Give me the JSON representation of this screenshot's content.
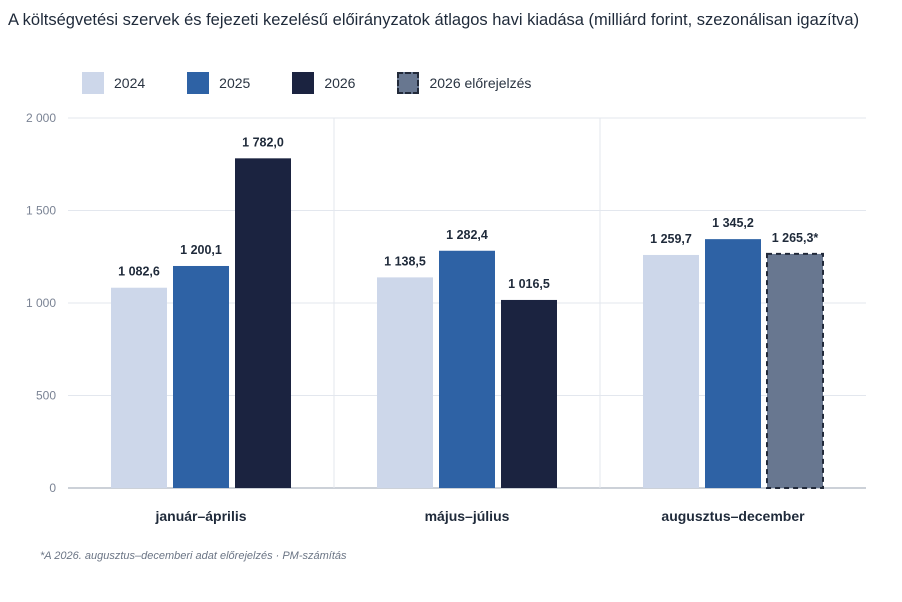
{
  "title": "A költségvetési szervek és fejezeti kezelésű előirányzatok átlagos havi kiadása (milliárd forint, szezonálisan igazítva)",
  "footnote": "*A 2026. augusztus–decemberi adat előrejelzés · PM-számítás",
  "chart_data": {
    "type": "bar",
    "title": "A költségvetési szervek és fejezeti kezelésű előirányzatok átlagos havi kiadása (milliárd forint, szezonálisan igazítva)",
    "categories": [
      "január–április",
      "május–július",
      "augusztus–december"
    ],
    "ylim": [
      0,
      2000
    ],
    "yticks": [
      0,
      500,
      1000,
      1500,
      2000
    ],
    "ytick_labels": [
      "0",
      "500",
      "1 000",
      "1 500",
      "2 000"
    ],
    "grid": "horizontal",
    "legend_position": "top-left",
    "series": [
      {
        "name": "2024",
        "color": "#cdd7ea",
        "values": [
          1082.6,
          1138.5,
          1259.7
        ],
        "labels": [
          "1 082,6",
          "1 138,5",
          "1 259,7"
        ]
      },
      {
        "name": "2025",
        "color": "#2e62a5",
        "values": [
          1200.1,
          1282.4,
          1345.2
        ],
        "labels": [
          "1 200,1",
          "1 282,4",
          "1 345,2"
        ]
      },
      {
        "name": "2026",
        "color": "#1b2340",
        "values": [
          1782.0,
          1016.5,
          null
        ],
        "labels": [
          "1 782,0",
          "1 016,5",
          ""
        ]
      },
      {
        "name": "2026 előrejelzés",
        "color": "#687790",
        "dashed": true,
        "values": [
          null,
          null,
          1265.3
        ],
        "labels": [
          "",
          "",
          "1 265,3*"
        ]
      }
    ]
  }
}
